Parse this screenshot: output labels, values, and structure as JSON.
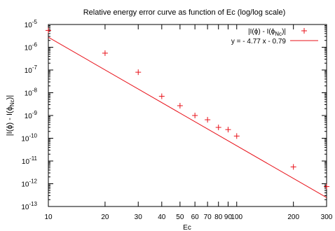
{
  "chart_data": {
    "type": "scatter",
    "title": "Relative energy error curve as function of Ec (log/log scale)",
    "xlabel": "Ec",
    "ylabel": {
      "main": "|I(ϕ)  - I(ϕ",
      "sub": "Nc",
      "tail": ")|"
    },
    "x_scale": "log",
    "y_scale": "log",
    "xlim": [
      10,
      300
    ],
    "ylim": [
      1e-13,
      1e-05
    ],
    "grid": false,
    "legend_position": "top-right",
    "x_ticks": [
      {
        "value": 10,
        "label": "10"
      },
      {
        "value": 20,
        "label": "20"
      },
      {
        "value": 30,
        "label": "30"
      },
      {
        "value": 40,
        "label": "40"
      },
      {
        "value": 50,
        "label": "50"
      },
      {
        "value": 60,
        "label": "60"
      },
      {
        "value": 70,
        "label": "70"
      },
      {
        "value": 80,
        "label": "80"
      },
      {
        "value": 90,
        "label": "90"
      },
      {
        "value": 100,
        "label": "100"
      },
      {
        "value": 200,
        "label": "200"
      },
      {
        "value": 300,
        "label": "300"
      }
    ],
    "y_ticks": [
      {
        "value": 1e-13,
        "base": "10",
        "exp": "-13"
      },
      {
        "value": 1e-12,
        "base": "10",
        "exp": "-12"
      },
      {
        "value": 1e-11,
        "base": "10",
        "exp": "-11"
      },
      {
        "value": 1e-10,
        "base": "10",
        "exp": "-10"
      },
      {
        "value": 1e-09,
        "base": "10",
        "exp": "-9"
      },
      {
        "value": 1e-08,
        "base": "10",
        "exp": "-8"
      },
      {
        "value": 1e-07,
        "base": "10",
        "exp": "-7"
      },
      {
        "value": 1e-06,
        "base": "10",
        "exp": "-6"
      },
      {
        "value": 1e-05,
        "base": "10",
        "exp": "-5"
      }
    ],
    "series": [
      {
        "name": "|I(ϕ)  - I(ϕNc)|",
        "legend": {
          "main": "|I(ϕ)  - I(ϕ",
          "sub": "Nc",
          "tail": ")|"
        },
        "kind": "points",
        "marker": "+",
        "color": "#e8121a",
        "x": [
          10,
          20,
          30,
          40,
          50,
          60,
          70,
          80,
          90,
          100,
          200,
          300
        ],
        "y": [
          5.5e-06,
          5.5e-07,
          8e-08,
          7e-09,
          2.7e-09,
          1e-09,
          6.5e-10,
          3e-10,
          2.4e-10,
          1.25e-10,
          5.5e-12,
          7.5e-13
        ]
      },
      {
        "name": "y = - 4.77 x - 0.79",
        "kind": "fit-line",
        "color": "#e8121a",
        "slope": -4.77,
        "intercept": -0.79
      }
    ]
  }
}
